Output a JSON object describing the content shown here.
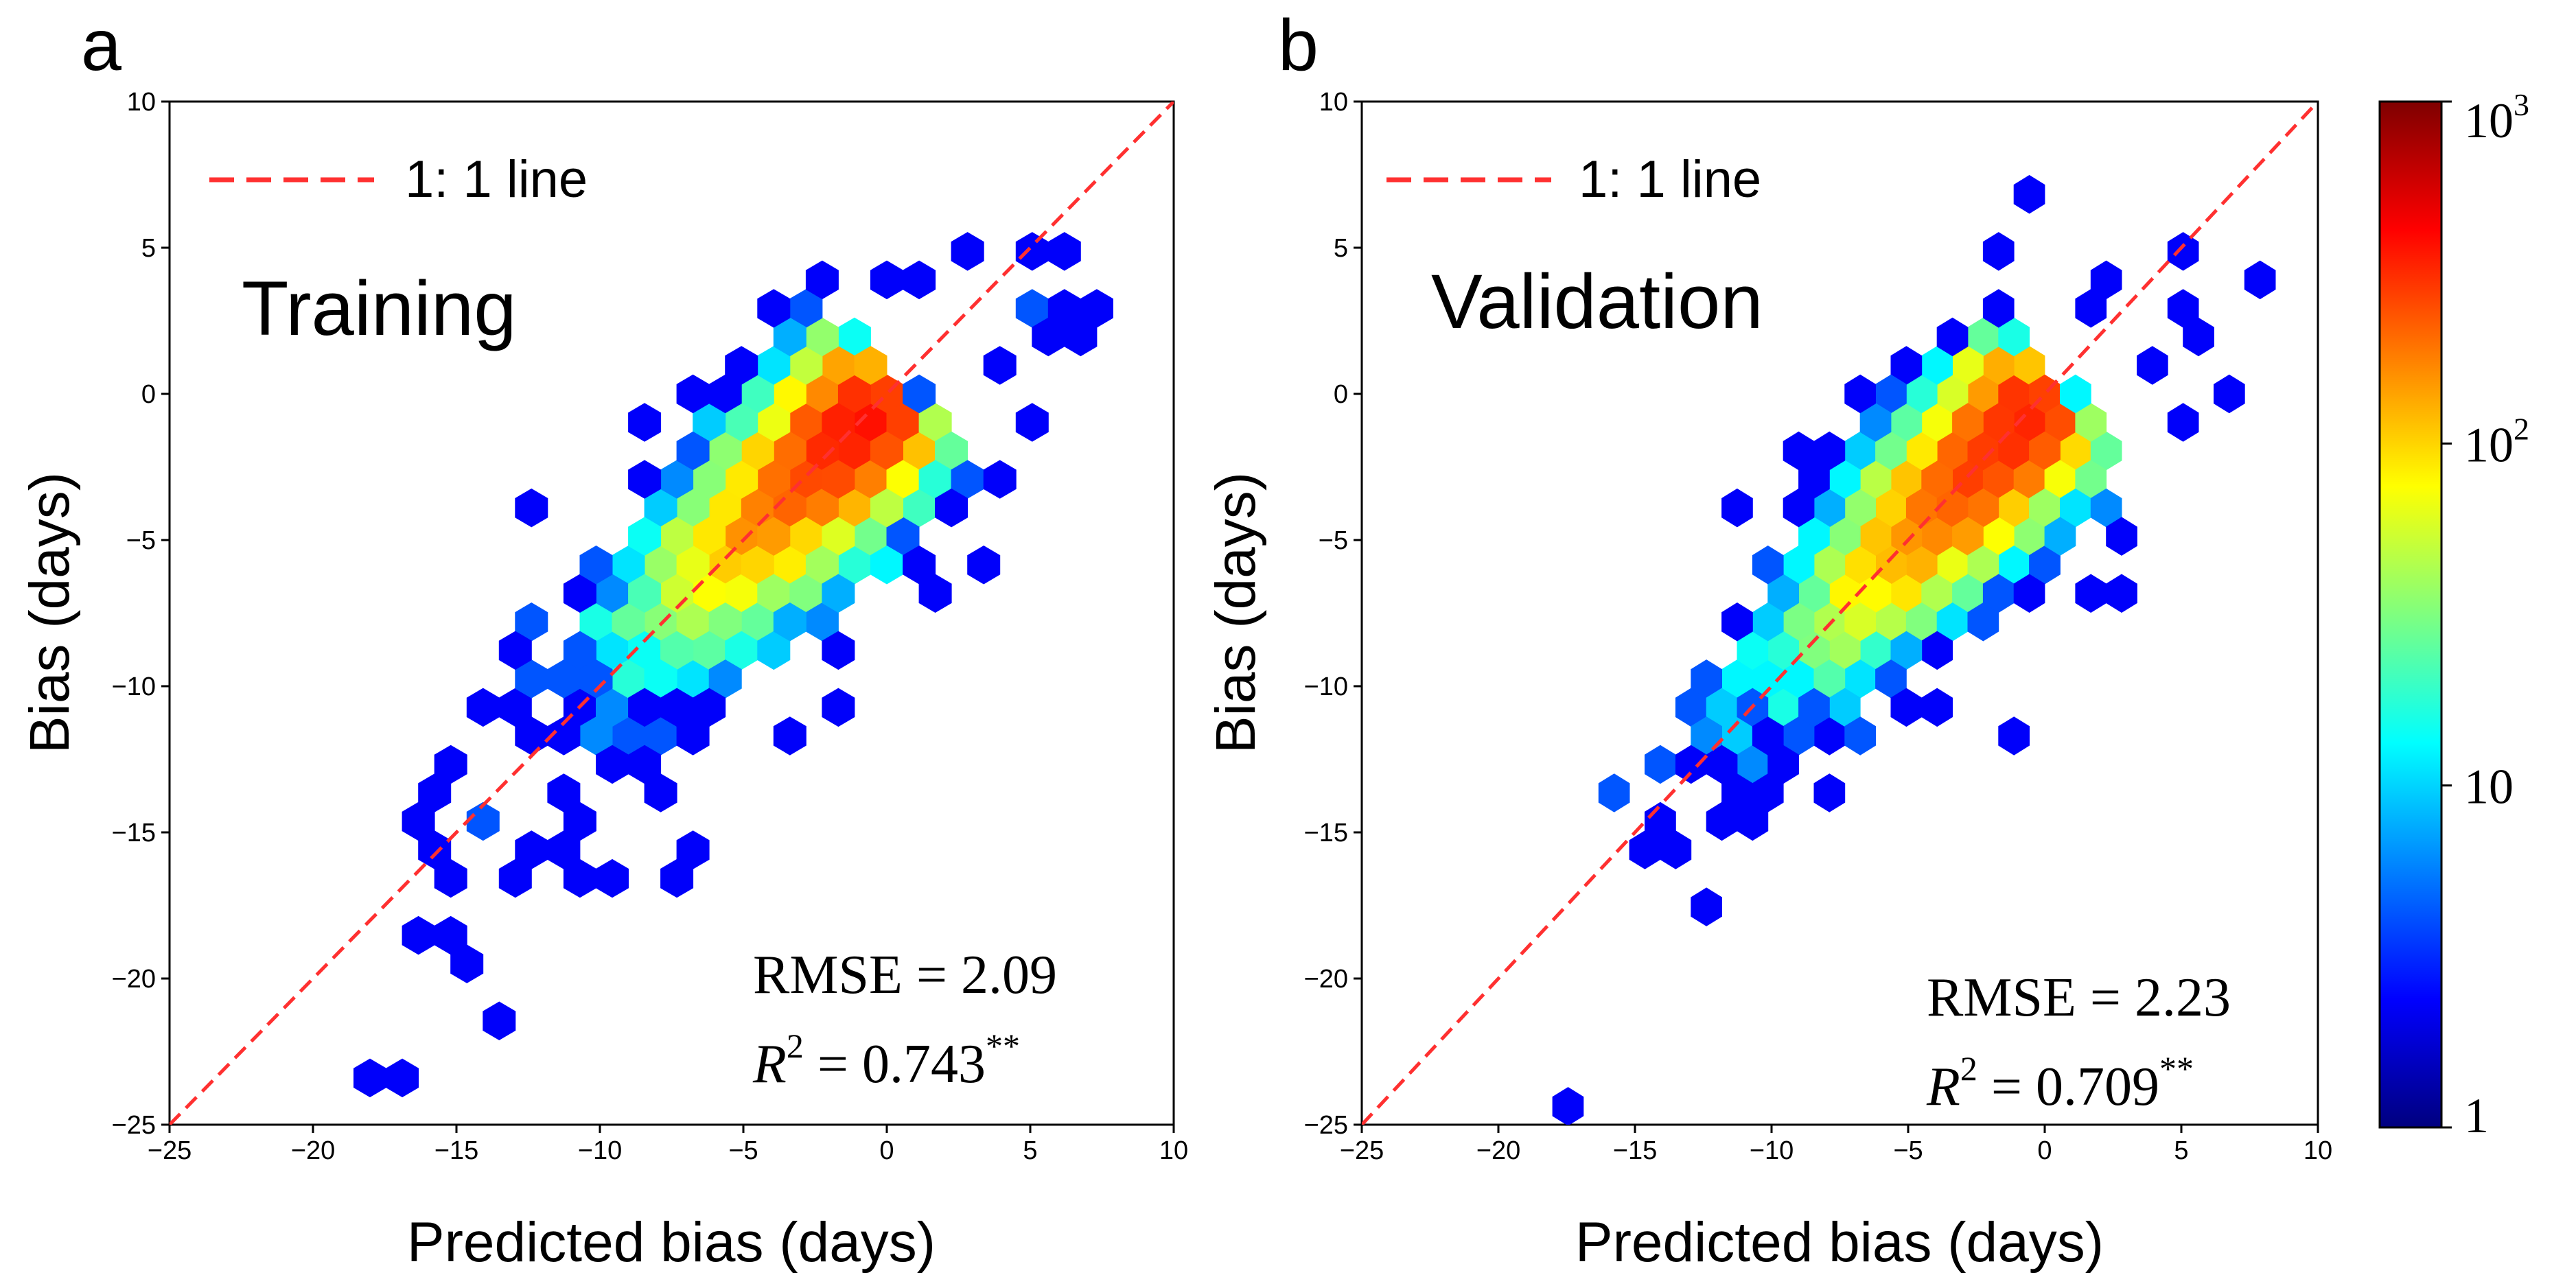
{
  "figure": {
    "colorbar": {
      "scale": "log",
      "min": 1,
      "max": 1000,
      "tick_labels": [
        {
          "base": "10",
          "exp": "3",
          "value": 1000
        },
        {
          "base": "10",
          "exp": "2",
          "value": 100
        },
        {
          "base": "10",
          "exp": "",
          "value": 10
        },
        {
          "base": "1",
          "exp": "",
          "value": 1
        }
      ],
      "colors": [
        "#00007f",
        "#0000ff",
        "#007fff",
        "#00ffff",
        "#7fff7f",
        "#ffff00",
        "#ff7f00",
        "#ff0000",
        "#7f0000"
      ]
    }
  },
  "chart_data": [
    {
      "type": "hexbin",
      "panel_label": "a",
      "title": "Training",
      "xlabel": "Predicted bias (days)",
      "ylabel": "Bias (days)",
      "xlim": [
        -25,
        10
      ],
      "ylim": [
        -25,
        10
      ],
      "xticks": [
        "−25",
        "−20",
        "−15",
        "−10",
        "−5",
        "0",
        "5",
        "10"
      ],
      "yticks": [
        "−25",
        "−20",
        "−15",
        "−10",
        "−5",
        "0",
        "5",
        "10"
      ],
      "legend": {
        "label": "1: 1 line",
        "color": "#ff3030",
        "placement": "top-left"
      },
      "stats": {
        "rmse_label": "RMSE = 2.09",
        "r2_label": "R",
        "r2_exp": "2",
        "r2_value": " = 0.743",
        "r2_sig": "**"
      },
      "reference_line": [
        [
          -25,
          -25
        ],
        [
          10,
          10
        ]
      ],
      "outliers": [
        [
          -18,
          -23.3
        ],
        [
          -17.2,
          -23.8
        ],
        [
          -13.7,
          -21.2
        ],
        [
          -14.5,
          -19.6
        ],
        [
          -16.2,
          -18.7
        ],
        [
          -14.8,
          -18.2
        ],
        [
          -15.5,
          -16.6
        ],
        [
          -12.5,
          -16.7
        ],
        [
          -16,
          -14.5
        ],
        [
          -16,
          -13.6
        ],
        [
          -12.2,
          -15.3
        ],
        [
          -11,
          -15.2
        ],
        [
          -14,
          -14.8
        ],
        [
          -14.6,
          -14.4
        ],
        [
          -14.8,
          -12.4
        ],
        [
          -14.5,
          -10.3
        ],
        [
          -12.2,
          -9.6
        ],
        [
          -12.8,
          -8.6
        ],
        [
          -12,
          -7.4
        ],
        [
          -12.5,
          -4
        ],
        [
          -9,
          -3.3
        ],
        [
          -8.2,
          -1.4
        ],
        [
          -6.7,
          -0.2
        ],
        [
          -5.1,
          0
        ],
        [
          -3.6,
          2.5
        ],
        [
          -2.8,
          3.2
        ],
        [
          -2,
          3.6
        ],
        [
          -0.3,
          4.3
        ],
        [
          1.3,
          4.3
        ],
        [
          3.3,
          4.5
        ],
        [
          4.7,
          5
        ],
        [
          6.3,
          5
        ],
        [
          5.2,
          3.2
        ],
        [
          7,
          3.3
        ],
        [
          6.1,
          2.5
        ],
        [
          6.6,
          1.9
        ],
        [
          5.6,
          1.5
        ],
        [
          4.6,
          2.8
        ],
        [
          3.9,
          0.5
        ],
        [
          4.8,
          -0.7
        ],
        [
          3.4,
          -3
        ],
        [
          2.7,
          -4.1
        ],
        [
          2.9,
          -5.4
        ],
        [
          1.8,
          -6.5
        ],
        [
          0.7,
          -6.2
        ],
        [
          -1.3,
          -10.6
        ],
        [
          -1.2,
          -9.1
        ],
        [
          -3.5,
          -11.4
        ],
        [
          -3.5,
          -8.7
        ],
        [
          -5.2,
          -10
        ],
        [
          -6.4,
          -12
        ],
        [
          -6.5,
          -15.4
        ],
        [
          -7.9,
          -13.7
        ],
        [
          -7.7,
          -16.1
        ],
        [
          -9.5,
          -16.5
        ],
        [
          -10.4,
          -14.2
        ],
        [
          -10.6,
          -16.6
        ],
        [
          -8.4,
          -12.4
        ],
        [
          -11.3,
          -11.7
        ],
        [
          -9.8,
          -11.8
        ]
      ]
    },
    {
      "type": "hexbin",
      "panel_label": "b",
      "title": "Validation",
      "xlabel": "Predicted bias (days)",
      "ylabel": "Bias (days)",
      "xlim": [
        -25,
        10
      ],
      "ylim": [
        -25,
        10
      ],
      "xticks": [
        "−25",
        "−20",
        "−15",
        "−10",
        "−5",
        "0",
        "5",
        "10"
      ],
      "yticks": [
        "−25",
        "−20",
        "−15",
        "−10",
        "−5",
        "0",
        "5",
        "10"
      ],
      "legend": {
        "label": "1: 1 line",
        "color": "#ff3030",
        "placement": "top-left"
      },
      "stats": {
        "rmse_label": "RMSE = 2.23",
        "r2_label": "R",
        "r2_exp": "2",
        "r2_value": " = 0.709",
        "r2_sig": "**"
      },
      "reference_line": [
        [
          -25,
          -25
        ],
        [
          10,
          10
        ]
      ],
      "outliers": [
        [
          -17,
          -24.5
        ],
        [
          -15.5,
          -13.7
        ],
        [
          -14.4,
          -16
        ],
        [
          -12,
          -17.2
        ],
        [
          -13,
          -15.4
        ],
        [
          -11.1,
          -15.1
        ],
        [
          -11.7,
          -14.4
        ],
        [
          -13.2,
          -12.5
        ],
        [
          -12.8,
          -11.3
        ],
        [
          -13,
          -10.6
        ],
        [
          -10.9,
          -14
        ],
        [
          -10,
          -12.6
        ],
        [
          -9.6,
          -13.8
        ],
        [
          -8.3,
          -13.5
        ],
        [
          -7,
          -11.2
        ],
        [
          -9.9,
          -9.3
        ],
        [
          -11.3,
          -9.8
        ],
        [
          -10.7,
          -8.7
        ],
        [
          -11.1,
          -7.7
        ],
        [
          -10.6,
          -6.3
        ],
        [
          -11.6,
          -3.8
        ],
        [
          -8.7,
          -8.7
        ],
        [
          -8.7,
          -6.3
        ],
        [
          -9.4,
          -5.8
        ],
        [
          -7,
          -3.7
        ],
        [
          -5.8,
          -2.4
        ],
        [
          -6.1,
          -0.8
        ],
        [
          -6.2,
          0.2
        ],
        [
          -2.7,
          1.7
        ],
        [
          -1.6,
          2.7
        ],
        [
          -1.4,
          4.5
        ],
        [
          -0.3,
          6.4
        ],
        [
          1.7,
          3.7
        ],
        [
          2.1,
          2.5
        ],
        [
          5.4,
          4.7
        ],
        [
          4.8,
          3.1
        ],
        [
          5.2,
          1.5
        ],
        [
          3.7,
          0.8
        ],
        [
          6.2,
          0.1
        ],
        [
          8.1,
          3.5
        ],
        [
          5.3,
          -0.8
        ],
        [
          2.4,
          -4.9
        ],
        [
          1.8,
          -6.4
        ],
        [
          3,
          -7.1
        ],
        [
          -1.2,
          -12
        ],
        [
          -4.1,
          -10.6
        ],
        [
          -2.7,
          -8.1
        ],
        [
          -5.2,
          -11.1
        ],
        [
          -6.1,
          -9.8
        ]
      ]
    }
  ]
}
